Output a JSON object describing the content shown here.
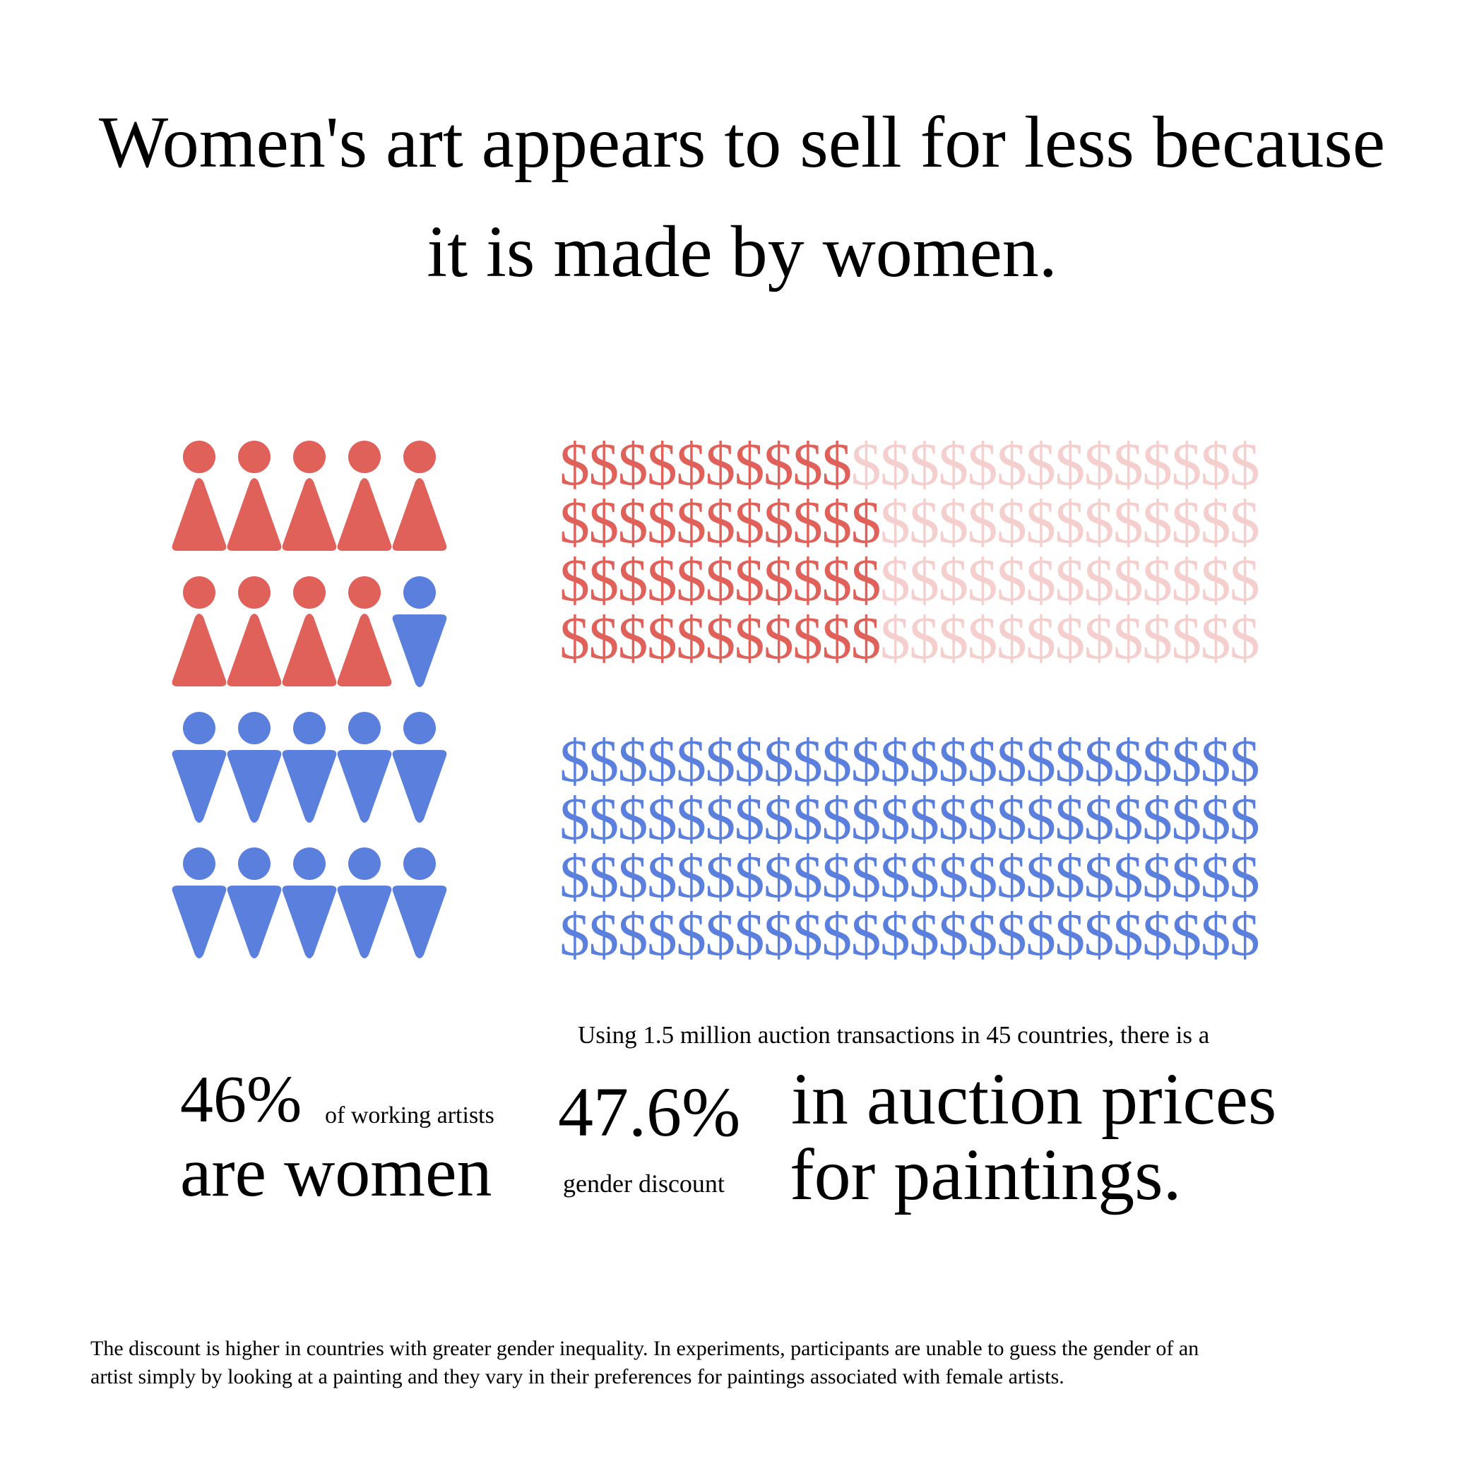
{
  "title": {
    "line1": "Women's art appears to sell for less  because",
    "line2": "it is made by women."
  },
  "colors": {
    "women": "#e0605a",
    "women_light": "#f5cfcd",
    "men": "#5a7fdc",
    "text": "#000000",
    "background": "#ffffff"
  },
  "icons": {
    "woman": "woman-icon",
    "man": "man-icon"
  },
  "chart_data": [
    {
      "type": "pictogram",
      "total": 20,
      "columns": 5,
      "categories": [
        "women",
        "men"
      ],
      "values": [
        9,
        11
      ],
      "percent_women": 46
    },
    {
      "type": "pictogram",
      "symbol": "$",
      "rows": 4,
      "symbols_per_row": 24,
      "series": [
        {
          "color": "women",
          "filled_per_row": [
            10,
            11,
            11,
            11
          ]
        },
        {
          "color": "men",
          "filled_per_row": [
            24,
            24,
            24,
            24
          ]
        }
      ],
      "discount_percent": 47.6
    }
  ],
  "stat_women": {
    "value": "46%",
    "caption": "of working artists",
    "line2": "are  women"
  },
  "discount": {
    "note": "Using 1.5 million auction transactions in 45 countries,  there is a",
    "value": "47.6%",
    "caption": "gender discount",
    "line1": "in auction prices",
    "line2": "for paintings."
  },
  "footnote": {
    "line1": "The discount is higher in countries with greater gender inequality. In experiments, participants are unable to guess the gender of an",
    "line2": "artist simply by looking at a painting and they vary in their preferences for paintings associated with female artists."
  }
}
